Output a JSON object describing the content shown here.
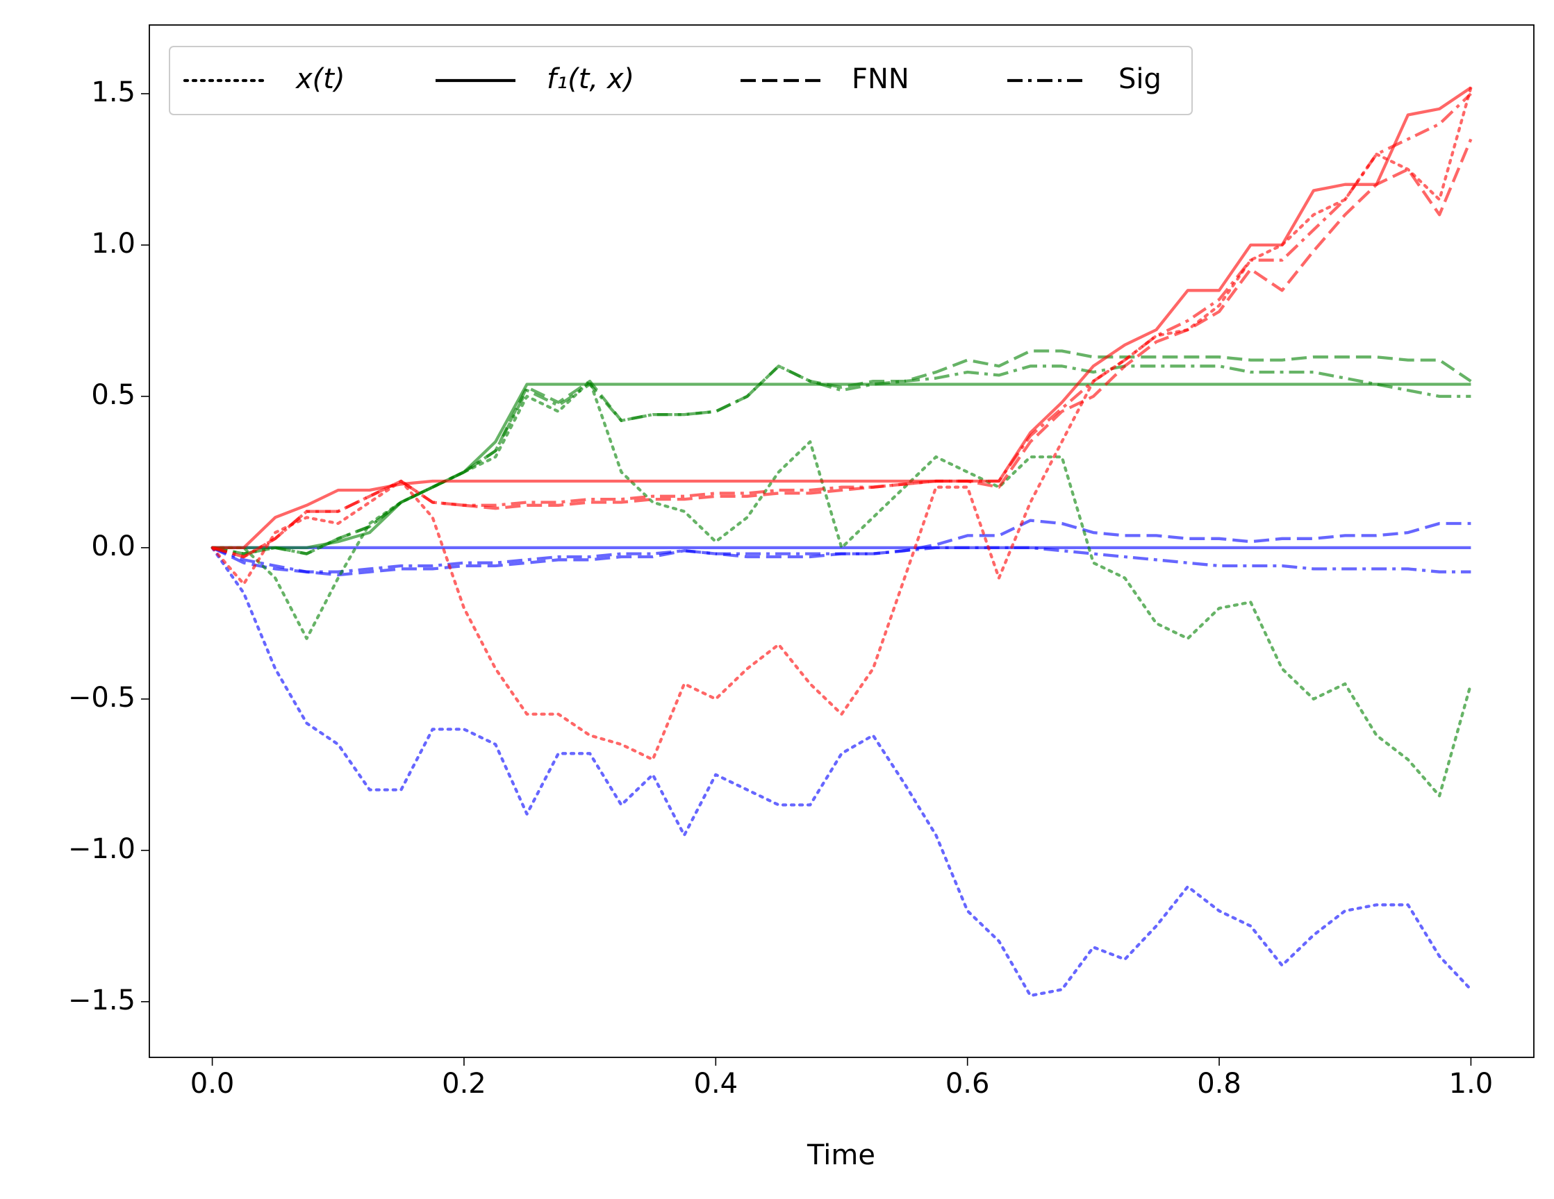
{
  "chart_data": {
    "type": "line",
    "xlabel": "Time",
    "xlim": [
      -0.05,
      1.05
    ],
    "ylim": [
      -1.684,
      1.727
    ],
    "xticks": [
      {
        "value": 0,
        "label": "0.0"
      },
      0.2,
      0.4,
      0.6,
      0.8,
      {
        "value": 1,
        "label": "1.0"
      }
    ],
    "yticks": [
      {
        "value": -1.5,
        "label": "−1.5"
      },
      {
        "value": -1,
        "label": "−1.0"
      },
      {
        "value": -0.5,
        "label": "−0.5"
      },
      {
        "value": 0,
        "label": "0.0"
      },
      0.5,
      {
        "value": 1,
        "label": "1.0"
      },
      1.5
    ],
    "legend_position": "upper left",
    "legend": [
      {
        "label": "x(t)",
        "style": "dotted"
      },
      {
        "label": "f₁(t, x)",
        "style": "solid"
      },
      {
        "label": "FNN",
        "style": "dashed"
      },
      {
        "label": "Sig",
        "style": "dashdot"
      }
    ],
    "x": [
      0,
      0.025,
      0.05,
      0.075,
      0.1,
      0.125,
      0.15,
      0.175,
      0.2,
      0.225,
      0.25,
      0.275,
      0.3,
      0.325,
      0.35,
      0.375,
      0.4,
      0.425,
      0.45,
      0.475,
      0.5,
      0.525,
      0.55,
      0.575,
      0.6,
      0.625,
      0.65,
      0.675,
      0.7,
      0.725,
      0.75,
      0.775,
      0.8,
      0.825,
      0.85,
      0.875,
      0.9,
      0.925,
      0.95,
      0.975,
      1
    ],
    "series": [
      {
        "color": "#0000ff",
        "style": "dotted",
        "values": [
          0,
          -0.15,
          -0.4,
          -0.58,
          -0.65,
          -0.8,
          -0.8,
          -0.6,
          -0.6,
          -0.65,
          -0.88,
          -0.68,
          -0.68,
          -0.85,
          -0.75,
          -0.95,
          -0.75,
          -0.8,
          -0.85,
          -0.85,
          -0.68,
          -0.62,
          -0.78,
          -0.95,
          -1.2,
          -1.3,
          -1.48,
          -1.46,
          -1.32,
          -1.36,
          -1.25,
          -1.12,
          -1.2,
          -1.25,
          -1.38,
          -1.28,
          -1.2,
          -1.18,
          -1.18,
          -1.35,
          -1.46
        ]
      },
      {
        "color": "#0000ff",
        "style": "solid",
        "values": [
          0,
          0,
          0,
          0,
          0,
          0,
          0,
          0,
          0,
          0,
          0,
          0,
          0,
          0,
          0,
          0,
          0,
          0,
          0,
          0,
          0,
          0,
          0,
          0,
          0,
          0,
          0,
          0,
          0,
          0,
          0,
          0,
          0,
          0,
          0,
          0,
          0,
          0,
          0,
          0,
          0
        ]
      },
      {
        "color": "#0000ff",
        "style": "dashed",
        "values": [
          0,
          -0.05,
          -0.07,
          -0.08,
          -0.09,
          -0.08,
          -0.07,
          -0.07,
          -0.06,
          -0.06,
          -0.05,
          -0.04,
          -0.04,
          -0.03,
          -0.03,
          -0.01,
          -0.02,
          -0.03,
          -0.03,
          -0.03,
          -0.02,
          -0.02,
          -0.01,
          0.01,
          0.04,
          0.04,
          0.09,
          0.08,
          0.05,
          0.04,
          0.04,
          0.03,
          0.03,
          0.02,
          0.03,
          0.03,
          0.04,
          0.04,
          0.05,
          0.08,
          0.08
        ]
      },
      {
        "color": "#0000ff",
        "style": "dashdot",
        "values": [
          0,
          -0.04,
          -0.06,
          -0.08,
          -0.08,
          -0.07,
          -0.06,
          -0.06,
          -0.05,
          -0.05,
          -0.04,
          -0.03,
          -0.03,
          -0.02,
          -0.02,
          -0.01,
          -0.02,
          -0.02,
          -0.02,
          -0.02,
          -0.02,
          -0.02,
          -0.01,
          0,
          0,
          0,
          0,
          -0.01,
          -0.02,
          -0.03,
          -0.04,
          -0.05,
          -0.06,
          -0.06,
          -0.06,
          -0.07,
          -0.07,
          -0.07,
          -0.07,
          -0.08,
          -0.08
        ]
      },
      {
        "color": "#008000",
        "style": "dotted",
        "values": [
          0,
          0,
          -0.1,
          -0.3,
          -0.1,
          0.08,
          0.15,
          0.2,
          0.25,
          0.3,
          0.5,
          0.45,
          0.55,
          0.25,
          0.15,
          0.12,
          0.02,
          0.1,
          0.25,
          0.35,
          0,
          0.1,
          0.2,
          0.3,
          0.25,
          0.2,
          0.3,
          0.3,
          -0.05,
          -0.1,
          -0.25,
          -0.3,
          -0.2,
          -0.18,
          -0.4,
          -0.5,
          -0.45,
          -0.62,
          -0.7,
          -0.82,
          -0.45
        ]
      },
      {
        "color": "#008000",
        "style": "solid",
        "values": [
          0,
          0,
          0,
          0,
          0.02,
          0.05,
          0.15,
          0.2,
          0.25,
          0.35,
          0.54,
          0.54,
          0.54,
          0.54,
          0.54,
          0.54,
          0.54,
          0.54,
          0.54,
          0.54,
          0.54,
          0.54,
          0.54,
          0.54,
          0.54,
          0.54,
          0.54,
          0.54,
          0.54,
          0.54,
          0.54,
          0.54,
          0.54,
          0.54,
          0.54,
          0.54,
          0.54,
          0.54,
          0.54,
          0.54,
          0.54
        ]
      },
      {
        "color": "#008000",
        "style": "dashed",
        "values": [
          0,
          -0.02,
          0,
          -0.02,
          0.03,
          0.07,
          0.15,
          0.2,
          0.25,
          0.32,
          0.53,
          0.48,
          0.55,
          0.42,
          0.44,
          0.44,
          0.45,
          0.5,
          0.6,
          0.55,
          0.53,
          0.55,
          0.55,
          0.58,
          0.62,
          0.6,
          0.65,
          0.65,
          0.63,
          0.63,
          0.63,
          0.63,
          0.63,
          0.62,
          0.62,
          0.63,
          0.63,
          0.63,
          0.62,
          0.62,
          0.55
        ]
      },
      {
        "color": "#008000",
        "style": "dashdot",
        "values": [
          0,
          -0.02,
          0,
          -0.02,
          0.03,
          0.07,
          0.15,
          0.2,
          0.25,
          0.32,
          0.52,
          0.47,
          0.54,
          0.42,
          0.44,
          0.44,
          0.45,
          0.5,
          0.6,
          0.55,
          0.52,
          0.54,
          0.55,
          0.56,
          0.58,
          0.57,
          0.6,
          0.6,
          0.58,
          0.6,
          0.6,
          0.6,
          0.6,
          0.58,
          0.58,
          0.58,
          0.56,
          0.54,
          0.52,
          0.5,
          0.5
        ]
      },
      {
        "color": "#ff0000",
        "style": "dotted",
        "values": [
          0,
          -0.12,
          0.05,
          0.1,
          0.08,
          0.15,
          0.22,
          0.1,
          -0.2,
          -0.4,
          -0.55,
          -0.55,
          -0.62,
          -0.65,
          -0.7,
          -0.45,
          -0.5,
          -0.4,
          -0.32,
          -0.45,
          -0.55,
          -0.4,
          -0.1,
          0.2,
          0.2,
          -0.1,
          0.15,
          0.35,
          0.55,
          0.62,
          0.7,
          0.72,
          0.8,
          0.95,
          1,
          1.1,
          1.15,
          1.3,
          1.25,
          1.15,
          1.52
        ]
      },
      {
        "color": "#ff0000",
        "style": "solid",
        "values": [
          0,
          0,
          0.1,
          0.14,
          0.19,
          0.19,
          0.21,
          0.22,
          0.22,
          0.22,
          0.22,
          0.22,
          0.22,
          0.22,
          0.22,
          0.22,
          0.22,
          0.22,
          0.22,
          0.22,
          0.22,
          0.22,
          0.22,
          0.22,
          0.22,
          0.22,
          0.38,
          0.48,
          0.6,
          0.67,
          0.72,
          0.85,
          0.85,
          1,
          1,
          1.18,
          1.2,
          1.2,
          1.43,
          1.45,
          1.52
        ]
      },
      {
        "color": "#ff0000",
        "style": "dashed",
        "values": [
          0,
          -0.03,
          0.03,
          0.12,
          0.12,
          0.17,
          0.22,
          0.15,
          0.14,
          0.13,
          0.14,
          0.14,
          0.15,
          0.15,
          0.16,
          0.16,
          0.17,
          0.17,
          0.18,
          0.18,
          0.19,
          0.2,
          0.21,
          0.22,
          0.22,
          0.2,
          0.35,
          0.45,
          0.5,
          0.6,
          0.68,
          0.72,
          0.78,
          0.92,
          0.85,
          0.98,
          1.1,
          1.2,
          1.25,
          1.1,
          1.35
        ]
      },
      {
        "color": "#ff0000",
        "style": "dashdot",
        "values": [
          0,
          -0.03,
          0.03,
          0.12,
          0.12,
          0.17,
          0.22,
          0.15,
          0.14,
          0.14,
          0.15,
          0.15,
          0.16,
          0.16,
          0.17,
          0.17,
          0.18,
          0.18,
          0.19,
          0.19,
          0.2,
          0.2,
          0.21,
          0.22,
          0.22,
          0.22,
          0.37,
          0.46,
          0.55,
          0.62,
          0.7,
          0.75,
          0.82,
          0.95,
          0.95,
          1.05,
          1.15,
          1.3,
          1.35,
          1.4,
          1.5
        ]
      }
    ]
  }
}
